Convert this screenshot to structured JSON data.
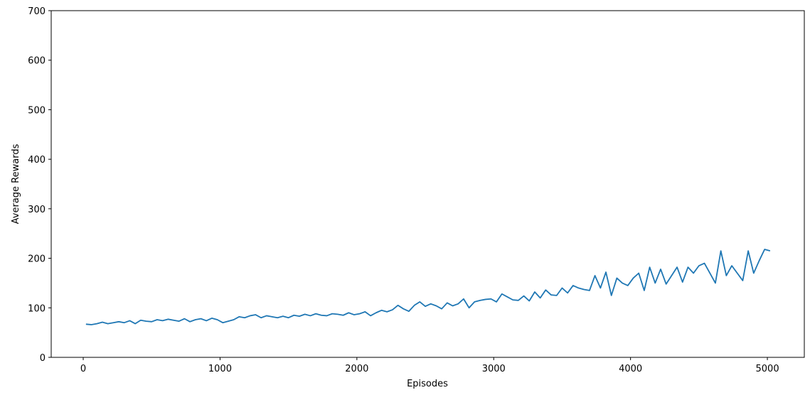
{
  "chart_data": {
    "type": "line",
    "x_label": "Episodes",
    "y_label": "Average Rewards",
    "xlim": [
      -234,
      5270
    ],
    "ylim": [
      0,
      700
    ],
    "xticks": [
      0,
      1000,
      2000,
      3000,
      4000,
      5000
    ],
    "yticks": [
      0,
      100,
      200,
      300,
      400,
      500,
      600,
      700
    ],
    "grid": false,
    "series": [
      {
        "color": "#1f77b4",
        "x": [
          20,
          60,
          100,
          140,
          180,
          220,
          260,
          300,
          340,
          380,
          420,
          460,
          500,
          540,
          580,
          620,
          660,
          700,
          740,
          780,
          820,
          860,
          900,
          940,
          980,
          1020,
          1060,
          1100,
          1140,
          1180,
          1220,
          1260,
          1300,
          1340,
          1380,
          1420,
          1460,
          1500,
          1540,
          1580,
          1620,
          1660,
          1700,
          1740,
          1780,
          1820,
          1860,
          1900,
          1940,
          1980,
          2020,
          2060,
          2100,
          2140,
          2180,
          2220,
          2260,
          2300,
          2340,
          2380,
          2420,
          2460,
          2500,
          2540,
          2580,
          2620,
          2660,
          2700,
          2740,
          2780,
          2820,
          2860,
          2900,
          2940,
          2980,
          3020,
          3060,
          3100,
          3140,
          3180,
          3220,
          3260,
          3300,
          3340,
          3380,
          3420,
          3460,
          3500,
          3540,
          3580,
          3620,
          3660,
          3700,
          3740,
          3780,
          3820,
          3860,
          3900,
          3940,
          3980,
          4020,
          4060,
          4100,
          4140,
          4180,
          4220,
          4260,
          4300,
          4340,
          4380,
          4420,
          4460,
          4500,
          4540,
          4580,
          4620,
          4660,
          4700,
          4740,
          4780,
          4820,
          4860,
          4900,
          4940,
          4980,
          5020
        ],
        "values": [
          67,
          66,
          68,
          71,
          68,
          70,
          72,
          70,
          74,
          68,
          75,
          73,
          72,
          76,
          74,
          77,
          75,
          73,
          78,
          72,
          76,
          78,
          74,
          79,
          76,
          70,
          73,
          76,
          82,
          80,
          84,
          86,
          80,
          84,
          82,
          80,
          83,
          80,
          85,
          83,
          87,
          84,
          88,
          85,
          84,
          88,
          87,
          85,
          90,
          86,
          88,
          92,
          84,
          90,
          95,
          92,
          96,
          105,
          98,
          93,
          105,
          112,
          103,
          108,
          104,
          98,
          110,
          104,
          108,
          118,
          100,
          112,
          115,
          117,
          118,
          112,
          128,
          122,
          116,
          115,
          124,
          114,
          132,
          120,
          136,
          126,
          125,
          140,
          130,
          145,
          140,
          137,
          135,
          165,
          140,
          172,
          125,
          160,
          150,
          145,
          160,
          170,
          135,
          182,
          150,
          178,
          148,
          165,
          182,
          152,
          182,
          170,
          185,
          190,
          170,
          150,
          215,
          165,
          185,
          170,
          155,
          215,
          170,
          195,
          218,
          215
        ]
      }
    ]
  }
}
